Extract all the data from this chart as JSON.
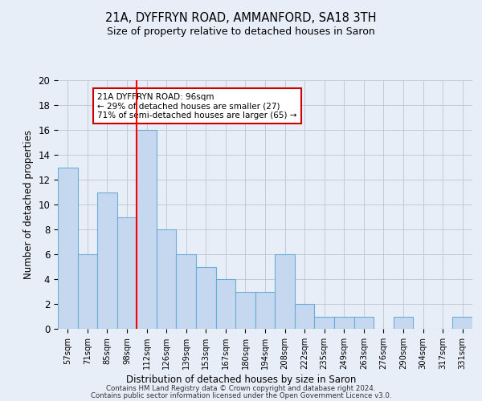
{
  "title1": "21A, DYFFRYN ROAD, AMMANFORD, SA18 3TH",
  "title2": "Size of property relative to detached houses in Saron",
  "xlabel": "Distribution of detached houses by size in Saron",
  "ylabel": "Number of detached properties",
  "categories": [
    "57sqm",
    "71sqm",
    "85sqm",
    "98sqm",
    "112sqm",
    "126sqm",
    "139sqm",
    "153sqm",
    "167sqm",
    "180sqm",
    "194sqm",
    "208sqm",
    "222sqm",
    "235sqm",
    "249sqm",
    "263sqm",
    "276sqm",
    "290sqm",
    "304sqm",
    "317sqm",
    "331sqm"
  ],
  "values": [
    13,
    6,
    11,
    9,
    16,
    8,
    6,
    5,
    4,
    3,
    3,
    6,
    2,
    1,
    1,
    1,
    0,
    1,
    0,
    0,
    1
  ],
  "bar_color": "#c5d8f0",
  "bar_edge_color": "#6aaed6",
  "ylim": [
    0,
    20
  ],
  "yticks": [
    0,
    2,
    4,
    6,
    8,
    10,
    12,
    14,
    16,
    18,
    20
  ],
  "redline_x": 3.5,
  "annotation_text": "21A DYFFRYN ROAD: 96sqm\n← 29% of detached houses are smaller (27)\n71% of semi-detached houses are larger (65) →",
  "annotation_box_color": "#ffffff",
  "annotation_box_edge": "#cc0000",
  "footer1": "Contains HM Land Registry data © Crown copyright and database right 2024.",
  "footer2": "Contains public sector information licensed under the Open Government Licence v3.0.",
  "bg_color": "#e8eef8"
}
